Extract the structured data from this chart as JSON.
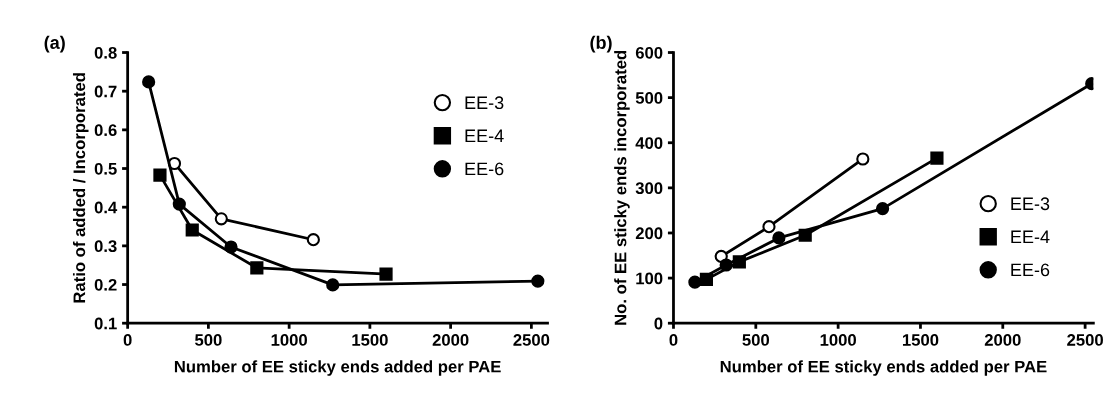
{
  "chart_data": [
    {
      "type": "line",
      "xlabel": "Number of EE sticky ends added per PAE",
      "ylabel": "Ratio of added / Incorporated",
      "annotations": [
        "(a)"
      ],
      "xlim": [
        0,
        2600
      ],
      "xticks": [
        0,
        500,
        1000,
        1500,
        2000,
        2500
      ],
      "ylim": [
        0.1,
        0.8
      ],
      "yticks": [
        0.1,
        0.2,
        0.3,
        0.4,
        0.5,
        0.6,
        0.7,
        0.8
      ],
      "grid": false,
      "legend": "top right",
      "line_style": "solid",
      "series": [
        {
          "name": "EE-3",
          "color": "#000000",
          "marker": "open circle",
          "x": [
            290,
            580,
            1150
          ],
          "values": [
            0.513,
            0.37,
            0.316
          ]
        },
        {
          "name": "EE-4",
          "color": "#000000",
          "marker": "square",
          "x": [
            200,
            400,
            800,
            1600
          ],
          "values": [
            0.483,
            0.341,
            0.243,
            0.227
          ]
        },
        {
          "name": "EE-6",
          "color": "#000000",
          "marker": "circle",
          "x": [
            130,
            320,
            640,
            1270,
            2540
          ],
          "values": [
            0.724,
            0.408,
            0.297,
            0.199,
            0.209
          ]
        }
      ]
    },
    {
      "type": "line",
      "xlabel": "Number of EE sticky ends added per PAE",
      "ylabel": "No. of EE sticky ends incorporated",
      "annotations": [
        "(b)"
      ],
      "xlim": [
        0,
        2550
      ],
      "xticks": [
        0,
        500,
        1000,
        1500,
        2000,
        2500
      ],
      "ylim": [
        0,
        600
      ],
      "yticks": [
        0,
        100,
        200,
        300,
        400,
        500,
        600
      ],
      "grid": false,
      "legend": "bottom right",
      "line_style": "solid",
      "series": [
        {
          "name": "EE-3",
          "color": "#000000",
          "marker": "open circle",
          "x": [
            290,
            580,
            1150
          ],
          "values": [
            148,
            214,
            364
          ]
        },
        {
          "name": "EE-4",
          "color": "#000000",
          "marker": "square",
          "x": [
            200,
            400,
            800,
            1600
          ],
          "values": [
            97,
            136,
            195,
            366
          ]
        },
        {
          "name": "EE-6",
          "color": "#000000",
          "marker": "circle",
          "x": [
            130,
            320,
            640,
            1270,
            2540
          ],
          "values": [
            91,
            129,
            189,
            254,
            531
          ]
        }
      ]
    }
  ]
}
